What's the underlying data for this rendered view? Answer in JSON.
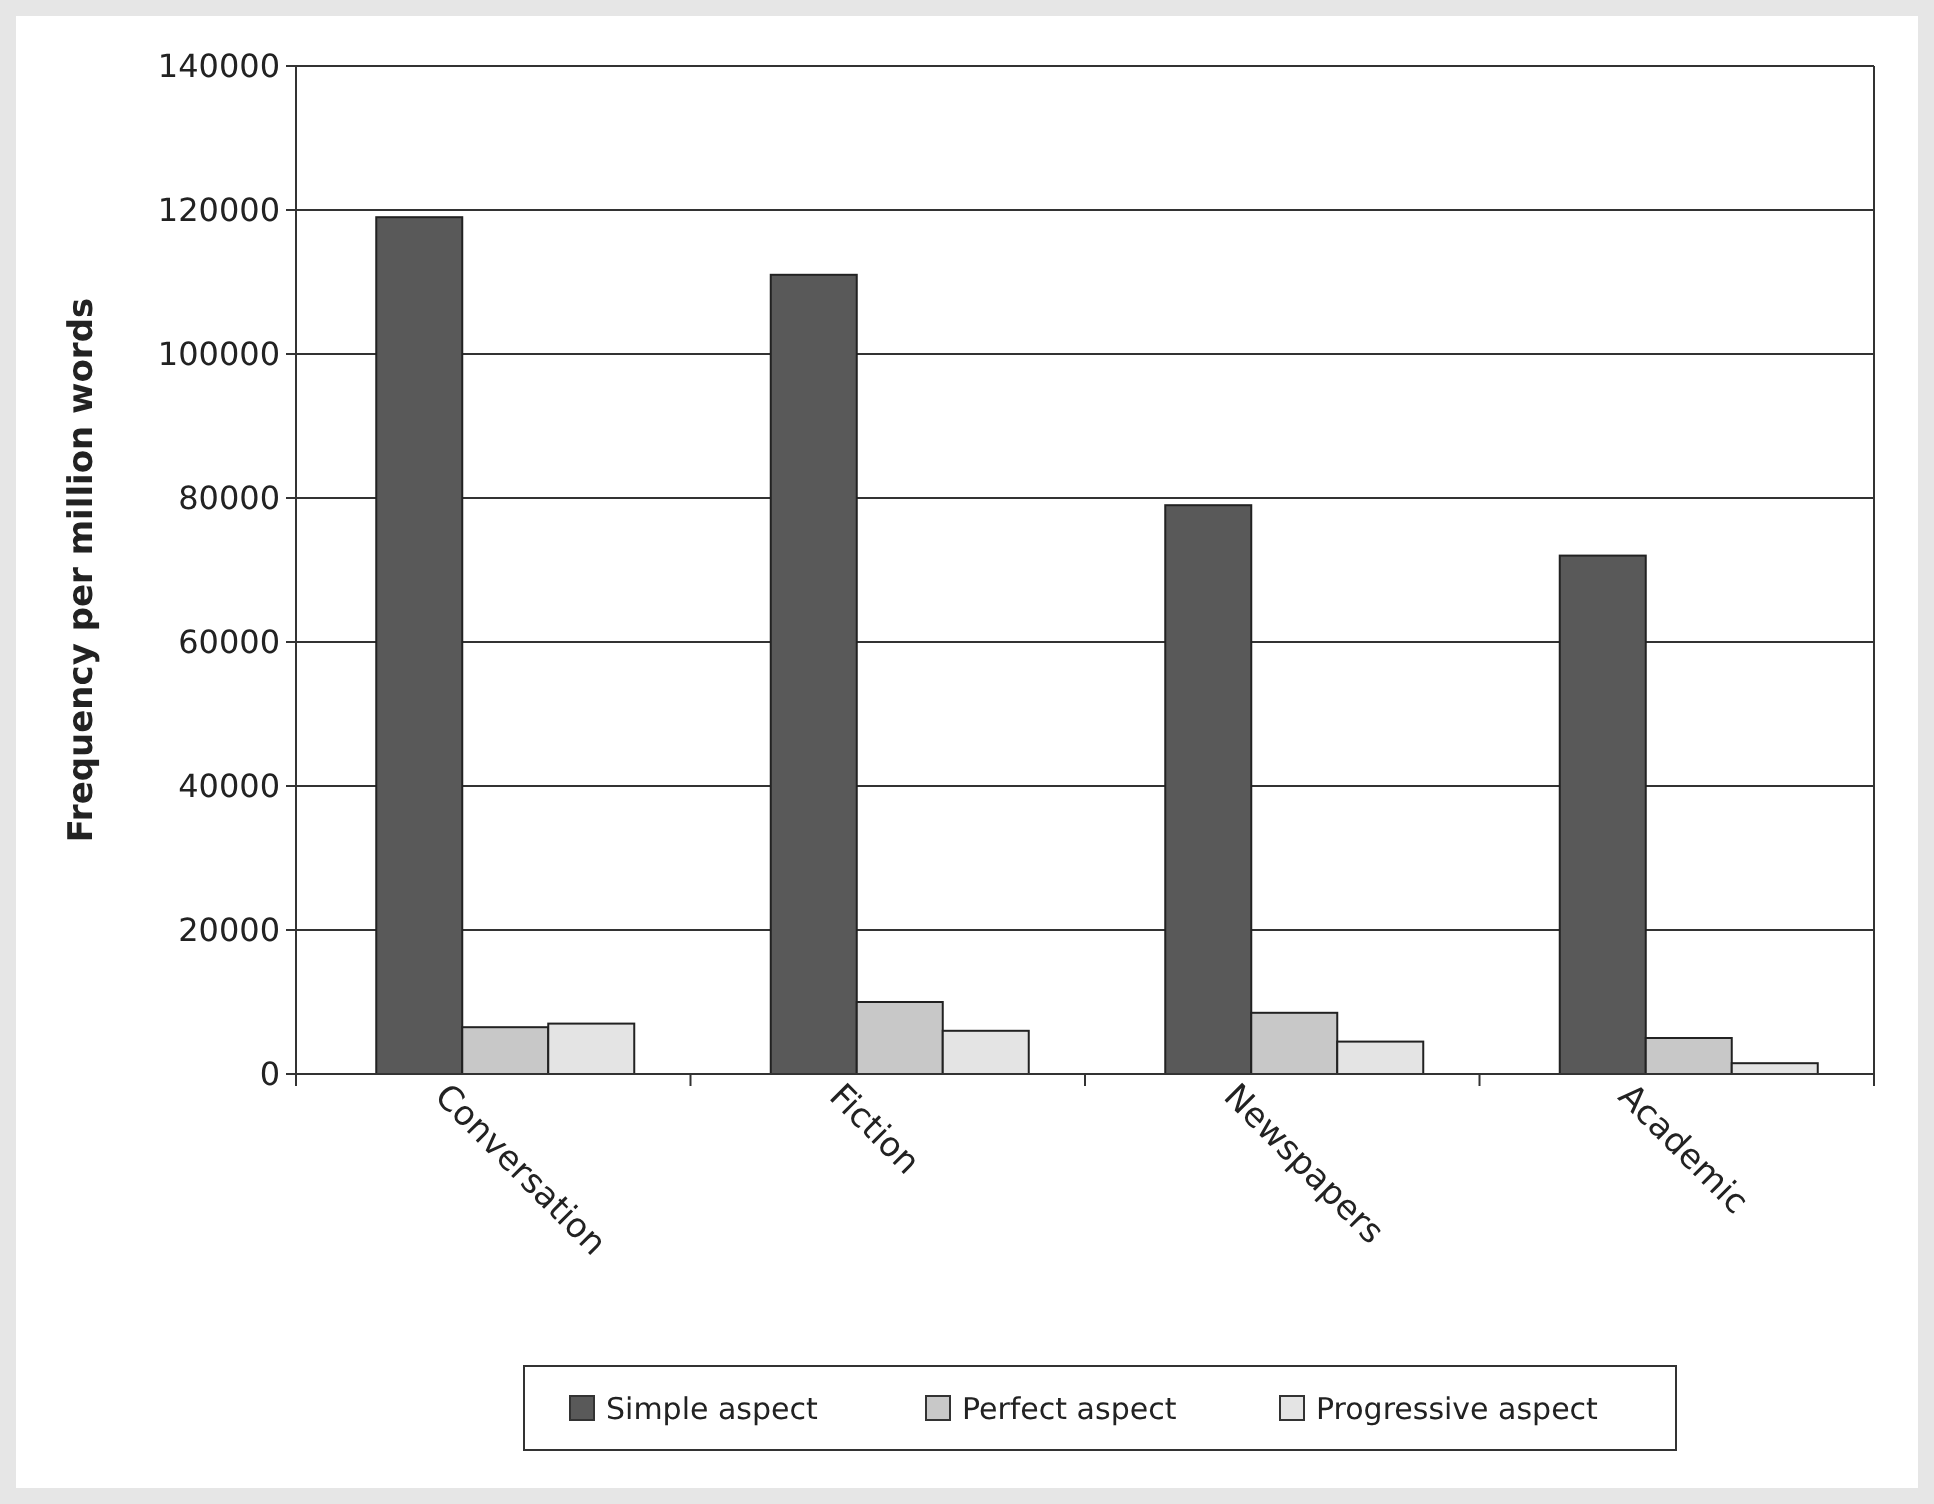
{
  "chart_data": {
    "type": "bar",
    "ylabel": "Frequency per million words",
    "categories": [
      "Conversation",
      "Fiction",
      "Newspapers",
      "Academic"
    ],
    "series": [
      {
        "name": "Simple aspect",
        "color": "#595959",
        "values": [
          119000,
          111000,
          79000,
          72000
        ]
      },
      {
        "name": "Perfect aspect",
        "color": "#c8c8c8",
        "values": [
          6500,
          10000,
          8500,
          5000
        ]
      },
      {
        "name": "Progressive aspect",
        "color": "#e4e4e4",
        "values": [
          7000,
          6000,
          4500,
          1500
        ]
      }
    ],
    "ylim": [
      0,
      140000
    ],
    "yticks": [
      0,
      20000,
      40000,
      60000,
      80000,
      100000,
      120000,
      140000
    ],
    "grid": "y",
    "legend": "bottom"
  }
}
